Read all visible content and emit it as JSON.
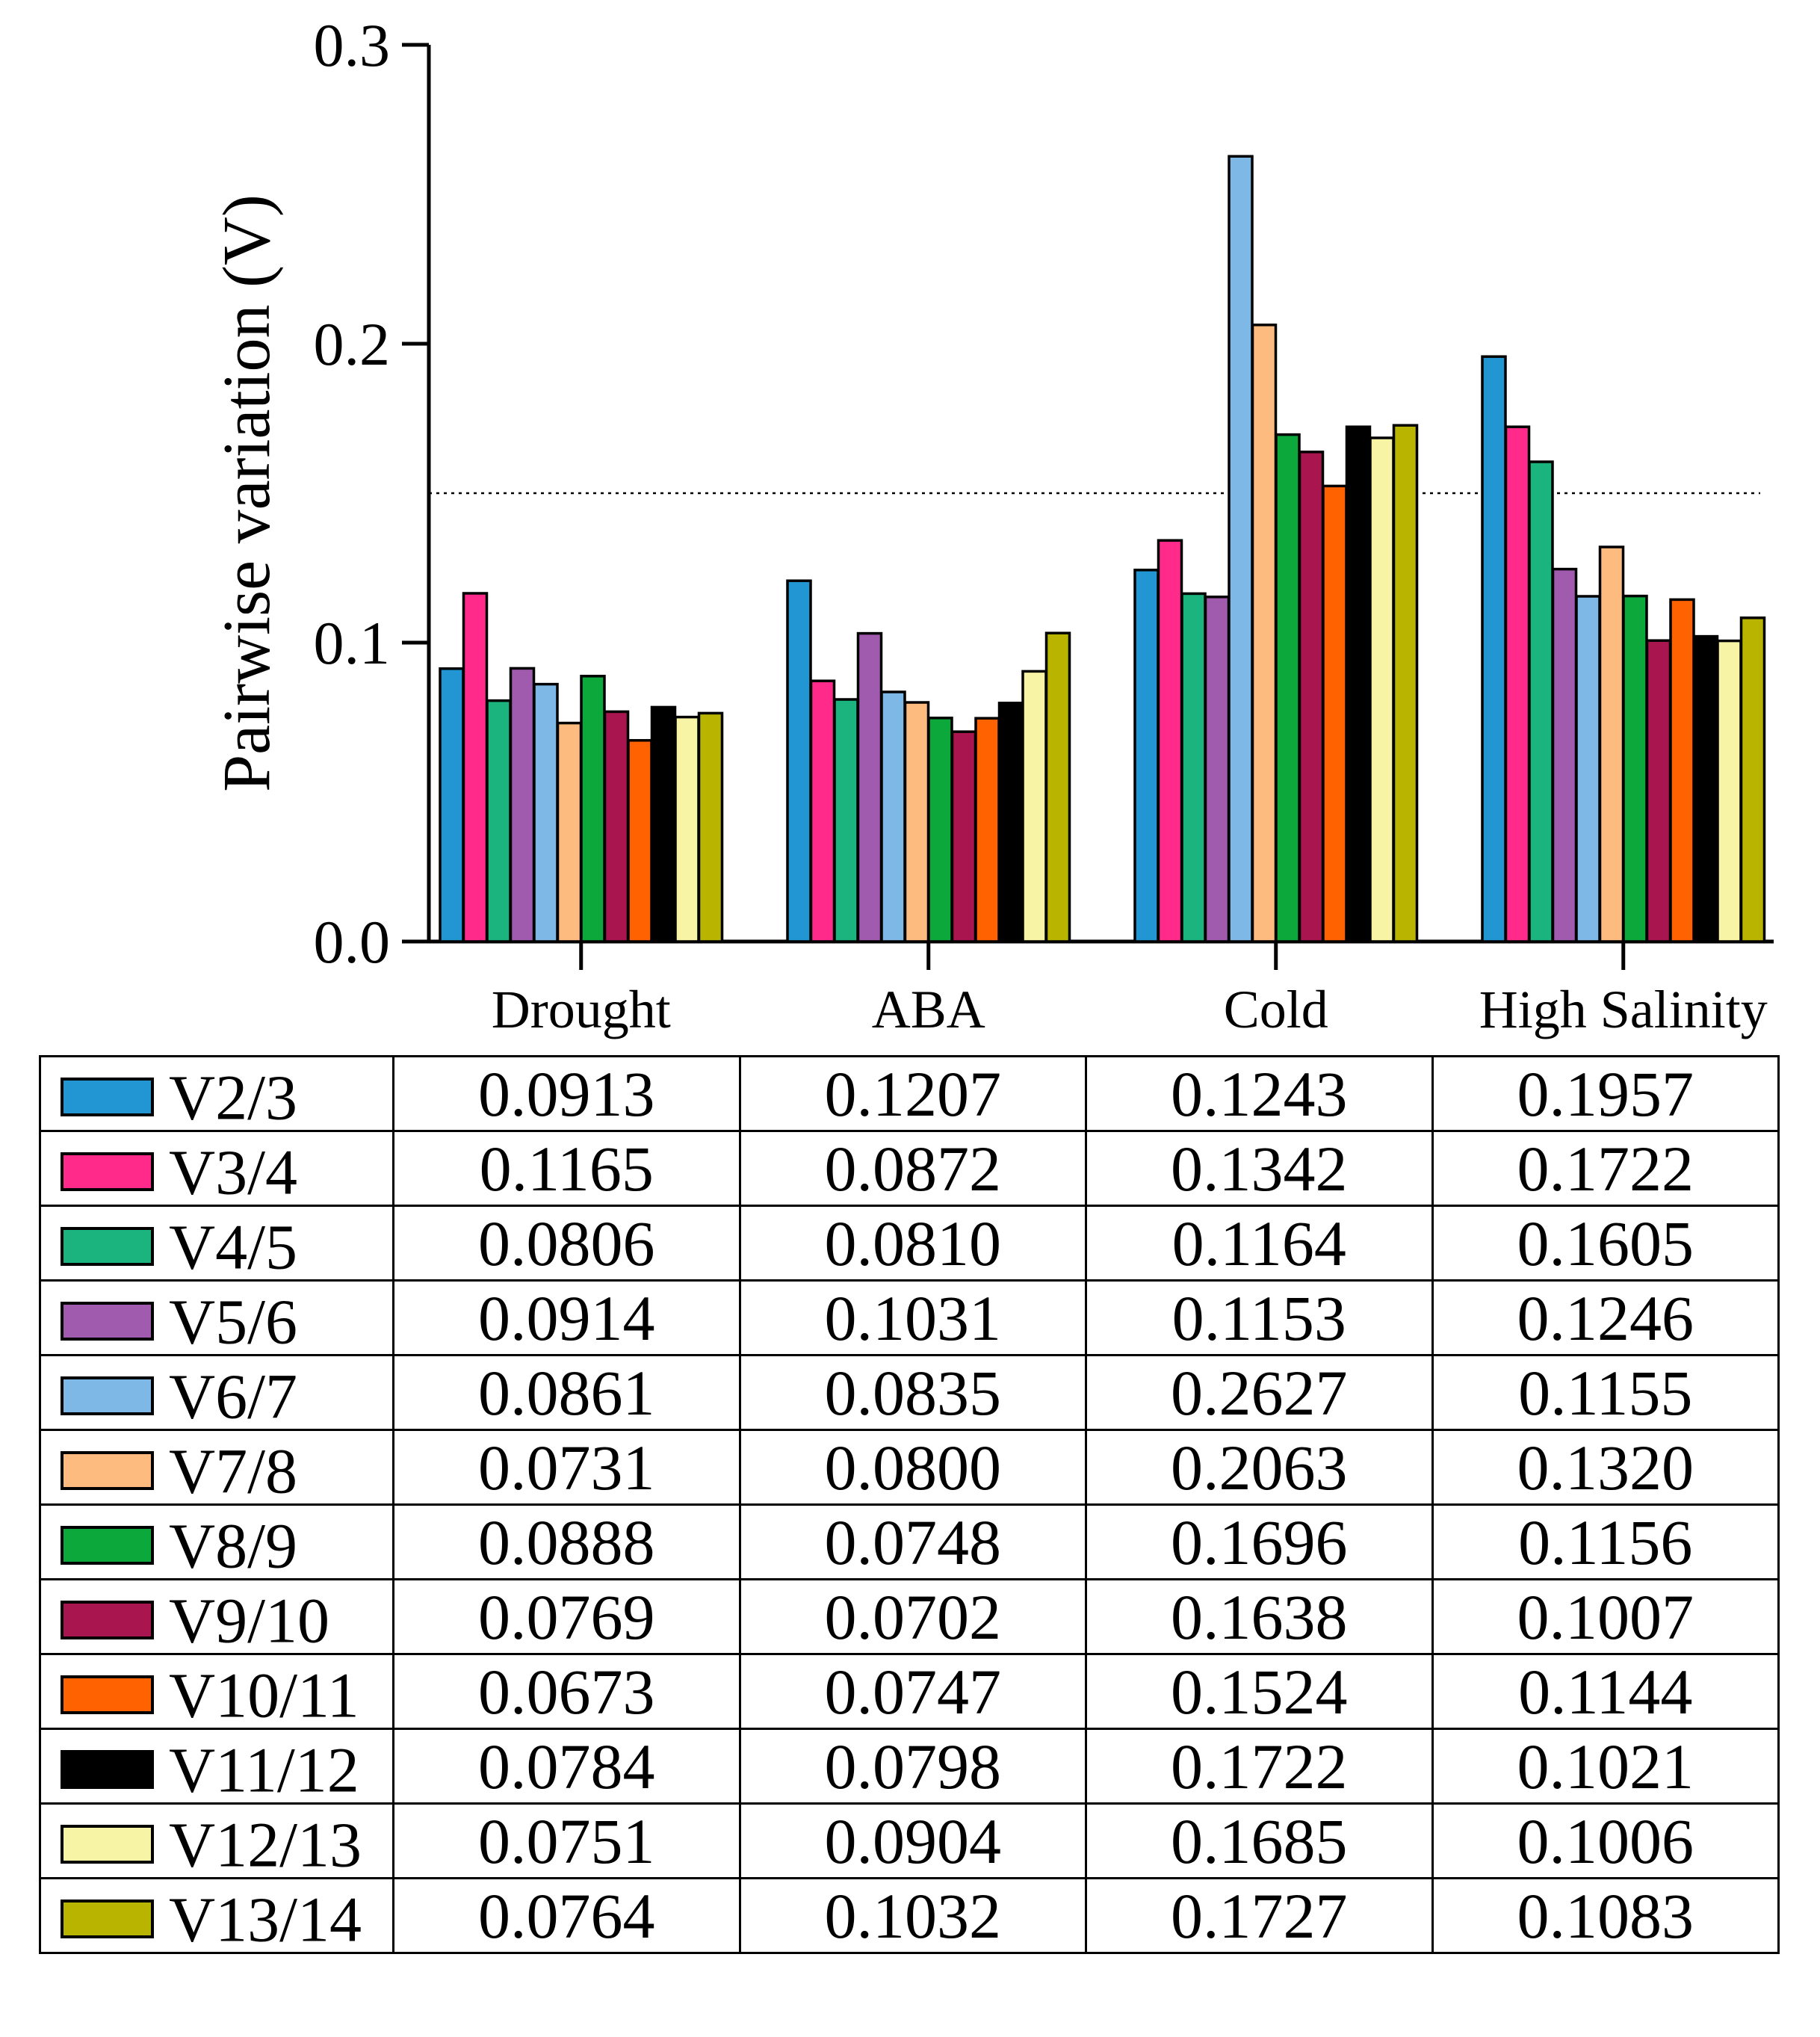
{
  "chart_data": {
    "type": "bar",
    "title": "",
    "xlabel": "",
    "ylabel": "Pairwise variation (V)",
    "ylim": [
      0,
      0.3
    ],
    "yticks": [
      "0.0",
      "0.1",
      "0.2",
      "0.3"
    ],
    "ytick_values": [
      0,
      0.1,
      0.2,
      0.3
    ],
    "categories": [
      "Drought",
      "ABA",
      "Cold",
      "High Salinity"
    ],
    "threshold": 0.15,
    "grid": false,
    "legend": "table-below",
    "series": [
      {
        "name": "V2/3",
        "color": "#2196D3",
        "values": [
          "0.0913",
          "0.1207",
          "0.1243",
          "0.1957"
        ]
      },
      {
        "name": "V3/4",
        "color": "#FF2A8A",
        "values": [
          "0.1165",
          "0.0872",
          "0.1342",
          "0.1722"
        ]
      },
      {
        "name": "V4/5",
        "color": "#1BB37E",
        "values": [
          "0.0806",
          "0.0810",
          "0.1164",
          "0.1605"
        ]
      },
      {
        "name": "V5/6",
        "color": "#A05AAE",
        "values": [
          "0.0914",
          "0.1031",
          "0.1153",
          "0.1246"
        ]
      },
      {
        "name": "V6/7",
        "color": "#7DB8E6",
        "values": [
          "0.0861",
          "0.0835",
          "0.2627",
          "0.1155"
        ]
      },
      {
        "name": "V7/8",
        "color": "#FDBB80",
        "values": [
          "0.0731",
          "0.0800",
          "0.2063",
          "0.1320"
        ]
      },
      {
        "name": "V8/9",
        "color": "#0CA83C",
        "values": [
          "0.0888",
          "0.0748",
          "0.1696",
          "0.1156"
        ]
      },
      {
        "name": "V9/10",
        "color": "#A9154E",
        "values": [
          "0.0769",
          "0.0702",
          "0.1638",
          "0.1007"
        ]
      },
      {
        "name": "V10/11",
        "color": "#FF6200",
        "values": [
          "0.0673",
          "0.0747",
          "0.1524",
          "0.1144"
        ]
      },
      {
        "name": "V11/12",
        "color": "#000000",
        "values": [
          "0.0784",
          "0.0798",
          "0.1722",
          "0.1021"
        ]
      },
      {
        "name": "V12/13",
        "color": "#F7F4A6",
        "values": [
          "0.0751",
          "0.0904",
          "0.1685",
          "0.1006"
        ]
      },
      {
        "name": "V13/14",
        "color": "#B9B400",
        "values": [
          "0.0764",
          "0.1032",
          "0.1727",
          "0.1083"
        ]
      }
    ]
  }
}
